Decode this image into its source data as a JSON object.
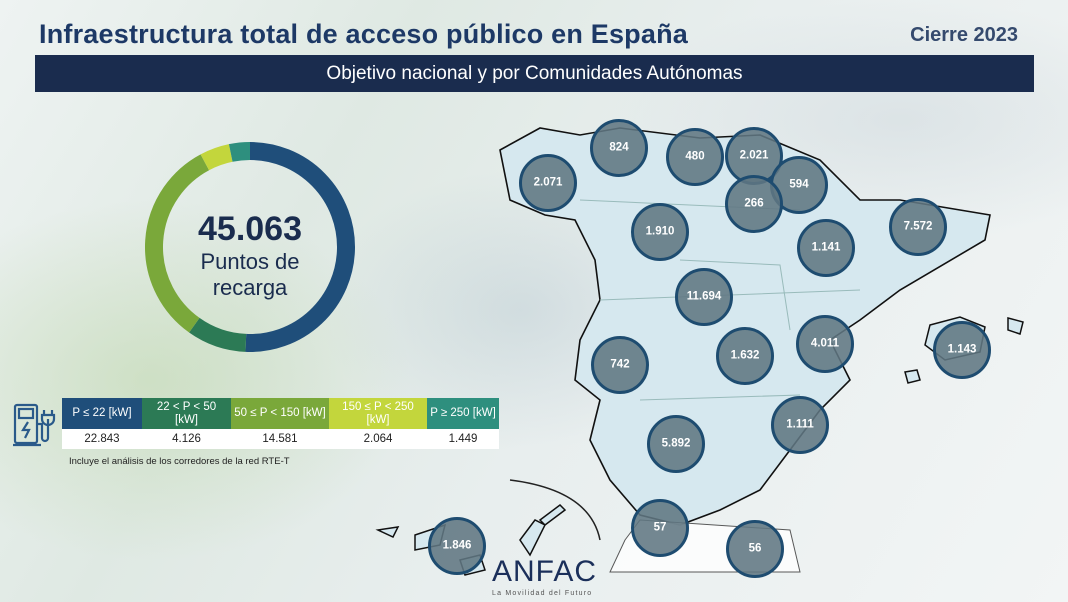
{
  "header": {
    "title": "Infraestructura total de acceso público en España",
    "year": "Cierre 2023",
    "subtitle": "Objetivo nacional y por Comunidades Autónomas"
  },
  "total": {
    "value": "45.063",
    "label1": "Puntos de",
    "label2": "recarga"
  },
  "power_table": {
    "icon": "ev-charger-icon",
    "columns": [
      {
        "label": "P ≤ 22 [kW]",
        "value": "22.843",
        "color": "#1f4e7a",
        "count": 22843
      },
      {
        "label": "22 < P < 50 [kW]",
        "value": "4.126",
        "color": "#2c7a55",
        "count": 4126
      },
      {
        "label": "50 ≤ P < 150 [kW]",
        "value": "14.581",
        "color": "#7aa83a",
        "count": 14581
      },
      {
        "label": "150 ≤ P < 250 [kW]",
        "value": "2.064",
        "color": "#c3d63c",
        "count": 2064
      },
      {
        "label": "P ≥ 250 [kW]",
        "value": "1.449",
        "color": "#2e8f7e",
        "count": 1449
      }
    ],
    "note": "Incluye el análisis de los corredores de la red RTE-T"
  },
  "regions": [
    "824",
    "480",
    "2.021",
    "594",
    "266",
    "2.071",
    "1.910",
    "1.141",
    "7.572",
    "11.694",
    "4.011",
    "1.143",
    "742",
    "1.632",
    "1.111",
    "5.892",
    "57",
    "56",
    "1.846"
  ],
  "logo": {
    "name": "ANFAC",
    "tagline": "La Movilidad del Futuro"
  }
}
